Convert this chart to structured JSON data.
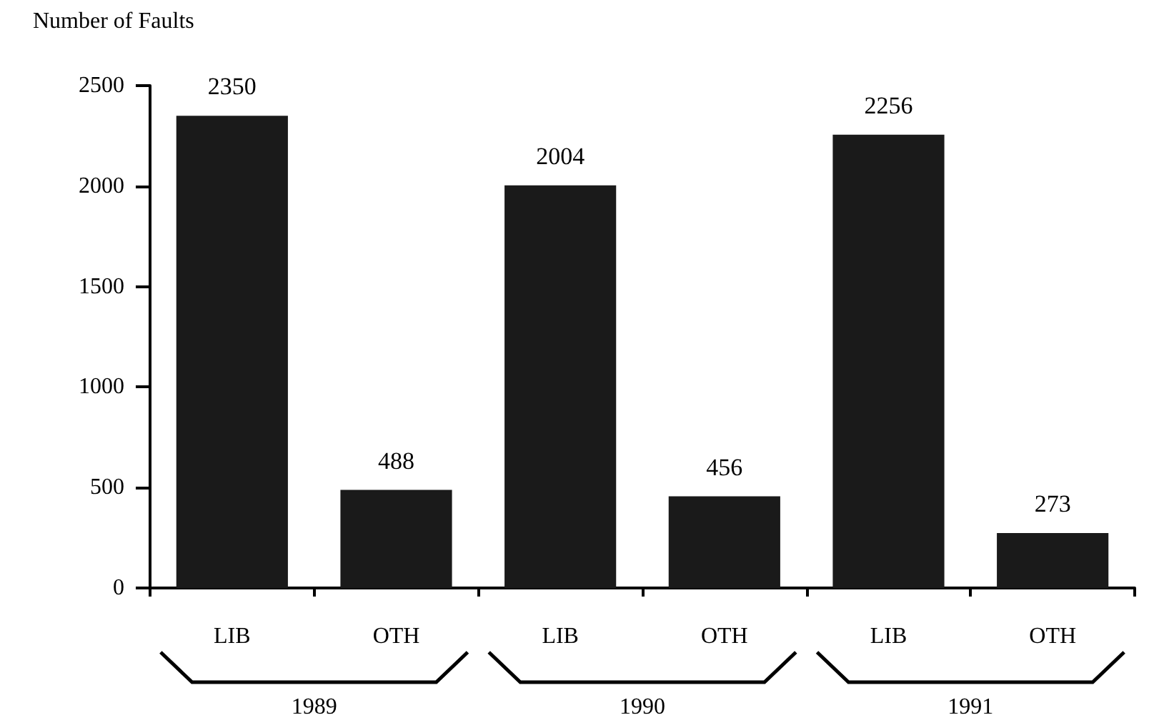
{
  "chart_data": {
    "type": "bar",
    "ylabel": "Number of Faults",
    "categories": [
      "LIB",
      "OTH",
      "LIB",
      "OTH",
      "LIB",
      "OTH"
    ],
    "values": [
      2350,
      488,
      2004,
      456,
      2256,
      273
    ],
    "color": "#1a1a1a",
    "ylim": [
      0,
      2500
    ],
    "yticks": [
      0,
      500,
      1000,
      1500,
      2000,
      2500
    ],
    "data_labels": true,
    "grid": false,
    "annotations": [
      "1989",
      "1990",
      "1991"
    ]
  }
}
